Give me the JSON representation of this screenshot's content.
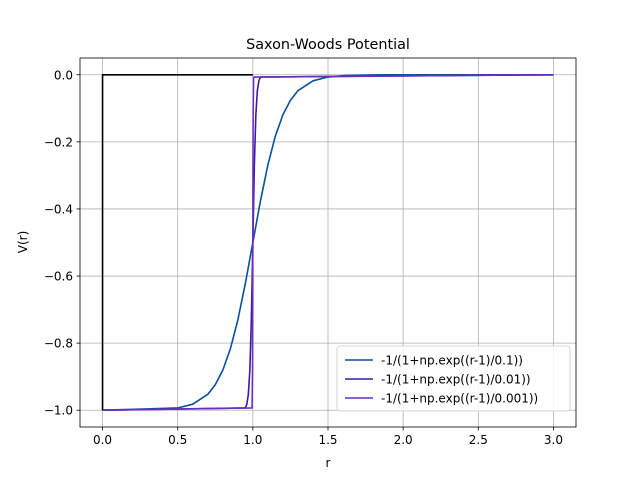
{
  "chart_data": {
    "type": "line",
    "title": "Saxon-Woods Potential",
    "xlabel": "r",
    "ylabel": "V(r)",
    "xlim": [
      -0.15,
      3.15
    ],
    "ylim": [
      -1.05,
      0.05
    ],
    "xticks": [
      0.0,
      0.5,
      1.0,
      1.5,
      2.0,
      2.5,
      3.0
    ],
    "xtick_labels": [
      "0.0",
      "0.5",
      "1.0",
      "1.5",
      "2.0",
      "2.5",
      "3.0"
    ],
    "yticks": [
      0.0,
      -0.2,
      -0.4,
      -0.6,
      -0.8,
      -1.0
    ],
    "ytick_labels": [
      "0.0",
      "−0.2",
      "−0.4",
      "−0.6",
      "−0.8",
      "−1.0"
    ],
    "grid": true,
    "legend_position": "lower-right",
    "series": [
      {
        "label": "-1/(1+np.exp((r-1)/0.1))",
        "color": "#0b4f9c",
        "x": [
          0.0,
          0.5,
          0.6,
          0.7,
          0.75,
          0.8,
          0.85,
          0.9,
          0.95,
          1.0,
          1.05,
          1.1,
          1.15,
          1.2,
          1.25,
          1.3,
          1.4,
          1.5,
          1.6,
          1.8,
          2.0,
          3.0
        ],
        "y": [
          -1.0,
          -0.9933,
          -0.982,
          -0.9526,
          -0.9241,
          -0.8808,
          -0.8176,
          -0.7311,
          -0.6225,
          -0.5,
          -0.3775,
          -0.2689,
          -0.1824,
          -0.1192,
          -0.0759,
          -0.0474,
          -0.018,
          -0.0067,
          -0.0025,
          -0.0003,
          0.0,
          0.0
        ]
      },
      {
        "label": "-1/(1+np.exp((r-1)/0.01))",
        "color": "#3d1a9e",
        "x": [
          0.0,
          0.95,
          0.96,
          0.97,
          0.98,
          0.99,
          1.0,
          1.01,
          1.02,
          1.03,
          1.04,
          1.05,
          3.0
        ],
        "y": [
          -1.0,
          -0.9933,
          -0.982,
          -0.9526,
          -0.8808,
          -0.7311,
          -0.5,
          -0.2689,
          -0.1192,
          -0.0474,
          -0.018,
          -0.0067,
          0.0
        ]
      },
      {
        "label": "-1/(1+np.exp((r-1)/0.001))",
        "color": "#6a2fc2",
        "x": [
          0.0,
          0.995,
          0.998,
          0.999,
          1.0,
          1.001,
          1.002,
          1.005,
          3.0
        ],
        "y": [
          -1.0,
          -0.9933,
          -0.8808,
          -0.7311,
          -0.5,
          -0.2689,
          -0.1192,
          -0.0067,
          0.0
        ]
      },
      {
        "label": "",
        "color": "#000000",
        "x": [
          0.0,
          0.0,
          1.0
        ],
        "y": [
          -1.0,
          0.0,
          0.0
        ]
      }
    ]
  }
}
